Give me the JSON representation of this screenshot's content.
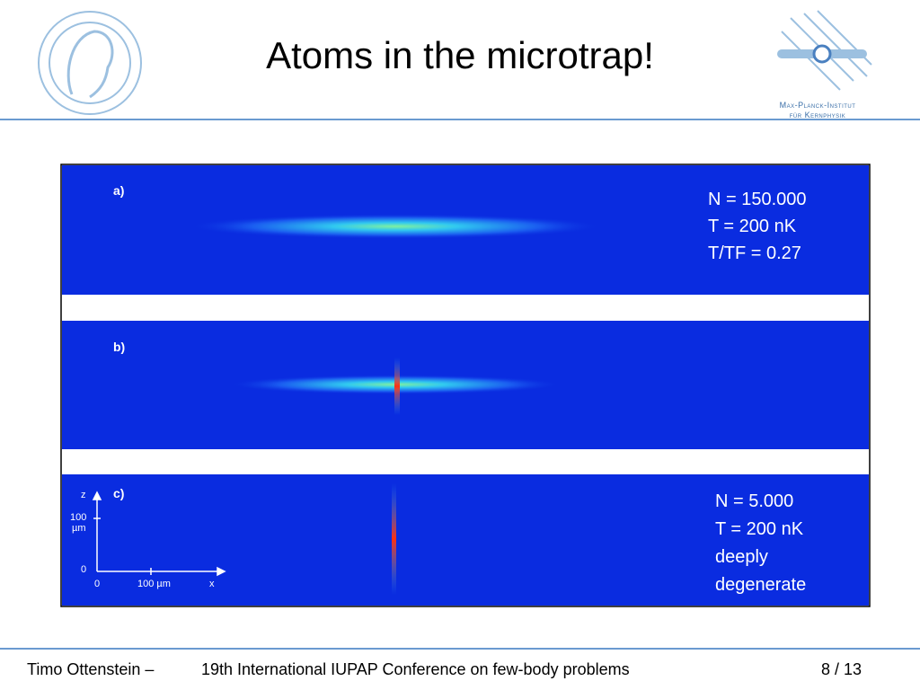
{
  "header": {
    "title": "Atoms in the microtrap!",
    "institute": [
      "Max-Planck-Institut",
      "für Kernphysik"
    ]
  },
  "panels": [
    {
      "label": "a)",
      "annotation": [
        "N = 150.000",
        "T = 200 nK",
        "T/TF = 0.27"
      ]
    },
    {
      "label": "b)"
    },
    {
      "label": "c)",
      "annotation": [
        "N = 5.000",
        "T = 200 nK",
        "deeply",
        "degenerate"
      ],
      "axes": {
        "y_name": "z",
        "y_labels": [
          "100",
          "µm",
          "0"
        ],
        "x_labels": [
          "0",
          "100 µm"
        ],
        "x_name": "x"
      }
    }
  ],
  "footer": {
    "author": "Timo Ottenstein –",
    "event": "19th International IUPAP Conference on few-body problems",
    "page": "8 / 13"
  }
}
